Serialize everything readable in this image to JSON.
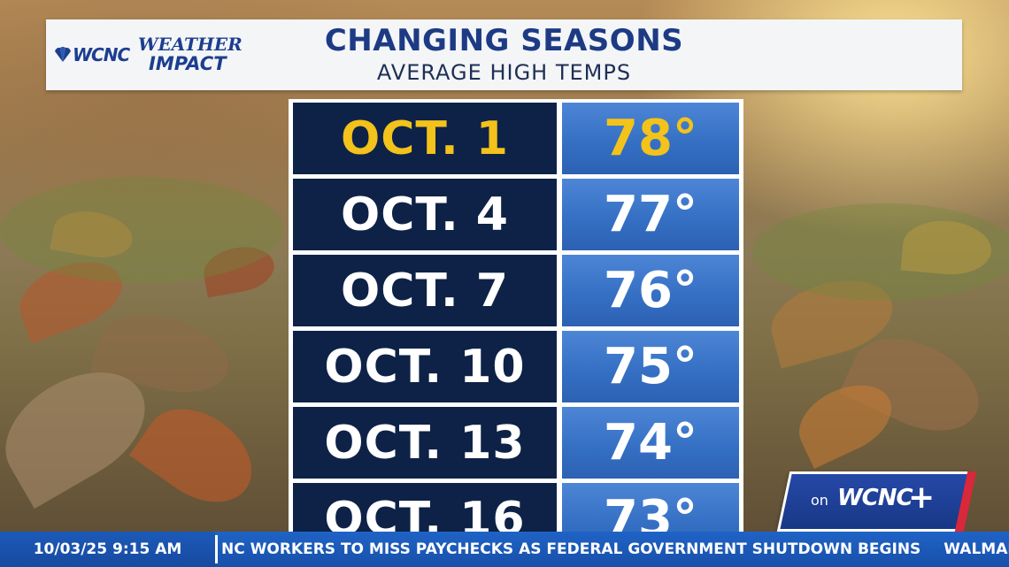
{
  "header": {
    "logo_wcnc": "WCNC",
    "logo_weather": "WEATHER",
    "logo_impact": "IMPACT",
    "title": "CHANGING SEASONS",
    "subtitle": "AVERAGE HIGH TEMPS"
  },
  "table": {
    "rows": [
      {
        "date": "OCT. 1",
        "temp": "78°",
        "highlighted": true
      },
      {
        "date": "OCT. 4",
        "temp": "77°",
        "highlighted": false
      },
      {
        "date": "OCT. 7",
        "temp": "76°",
        "highlighted": false
      },
      {
        "date": "OCT. 10",
        "temp": "75°",
        "highlighted": false
      },
      {
        "date": "OCT. 13",
        "temp": "74°",
        "highlighted": false
      },
      {
        "date": "OCT. 16",
        "temp": "73°",
        "highlighted": false
      }
    ],
    "highlight_color": "#f3c21b"
  },
  "bug": {
    "on": "on",
    "brand": "WCNC",
    "plus": "+"
  },
  "ticker": {
    "timestamp": "10/03/25 9:15 AM",
    "headline_1": "NC WORKERS TO MISS PAYCHECKS AS FEDERAL GOVERNMENT SHUTDOWN BEGINS",
    "headline_2": "WALMART COMMITS TO L"
  }
}
